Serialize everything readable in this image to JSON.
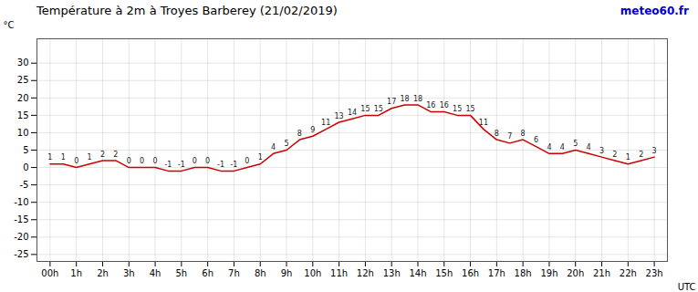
{
  "chart_data": {
    "type": "line",
    "title": "Température à 2m à Troyes Barberey (21/02/2019)",
    "annotations": [
      {
        "text": "meteo60.fr",
        "color": "#0000cc"
      }
    ],
    "xlabel": "UTC",
    "ylabel": "°C",
    "x": [
      0,
      0.5,
      1,
      1.5,
      2,
      2.5,
      3,
      3.5,
      4,
      4.5,
      5,
      5.5,
      6,
      6.5,
      7,
      7.5,
      8,
      8.5,
      9,
      9.5,
      10,
      10.5,
      11,
      11.5,
      12,
      12.5,
      13,
      13.5,
      14,
      14.5,
      15,
      15.5,
      16,
      16.5,
      17,
      17.5,
      18,
      18.5,
      19,
      19.5,
      20,
      20.5,
      21,
      21.5,
      22,
      22.5,
      23
    ],
    "values": [
      1,
      1,
      0,
      1,
      2,
      2,
      0,
      0,
      0,
      -1,
      -1,
      0,
      0,
      -1,
      -1,
      0,
      1,
      4,
      5,
      8,
      9,
      11,
      13,
      14,
      15,
      15,
      17,
      18,
      18,
      16,
      16,
      15,
      15,
      11,
      8,
      7,
      8,
      6,
      4,
      4,
      5,
      4,
      3,
      2,
      1,
      2,
      3
    ],
    "color": "#cc0000",
    "xlim": [
      -0.5,
      23.5
    ],
    "xticks": [
      {
        "value": 0,
        "label": "00h"
      },
      {
        "value": 1,
        "label": "1h"
      },
      {
        "value": 2,
        "label": "2h"
      },
      {
        "value": 3,
        "label": "3h"
      },
      {
        "value": 4,
        "label": "4h"
      },
      {
        "value": 5,
        "label": "5h"
      },
      {
        "value": 6,
        "label": "6h"
      },
      {
        "value": 7,
        "label": "7h"
      },
      {
        "value": 8,
        "label": "8h"
      },
      {
        "value": 9,
        "label": "9h"
      },
      {
        "value": 10,
        "label": "10h"
      },
      {
        "value": 11,
        "label": "11h"
      },
      {
        "value": 12,
        "label": "12h"
      },
      {
        "value": 13,
        "label": "13h"
      },
      {
        "value": 14,
        "label": "14h"
      },
      {
        "value": 15,
        "label": "15h"
      },
      {
        "value": 16,
        "label": "16h"
      },
      {
        "value": 17,
        "label": "17h"
      },
      {
        "value": 18,
        "label": "18h"
      },
      {
        "value": 19,
        "label": "19h"
      },
      {
        "value": 20,
        "label": "20h"
      },
      {
        "value": 21,
        "label": "21h"
      },
      {
        "value": 22,
        "label": "22h"
      },
      {
        "value": 23,
        "label": "23h"
      }
    ],
    "ylim": [
      -27,
      37
    ],
    "yticks": [
      -25,
      -20,
      -15,
      -10,
      -5,
      0,
      5,
      10,
      15,
      20,
      25,
      30
    ],
    "grid": true,
    "data_labels": true
  }
}
